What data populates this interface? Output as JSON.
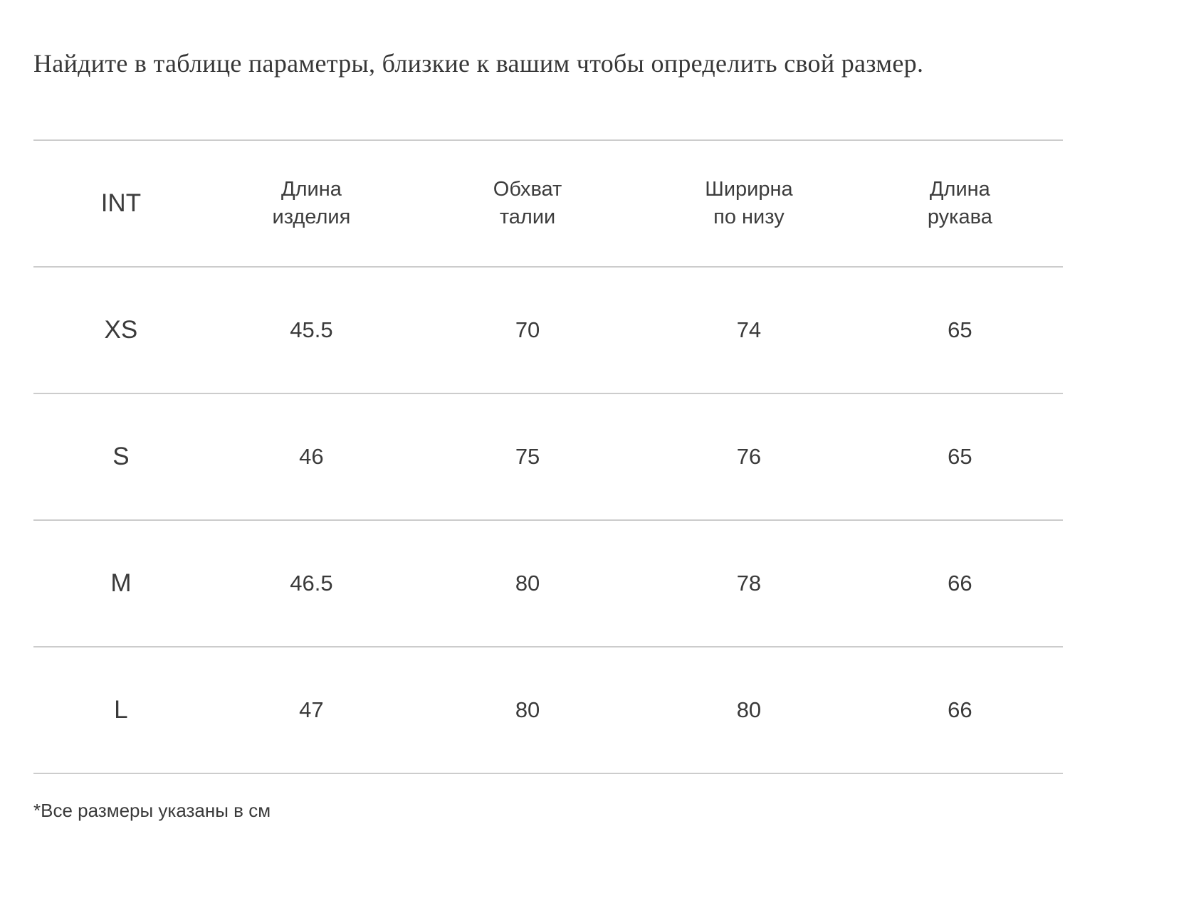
{
  "title": "Найдите в таблице параметры, близкие к вашим чтобы определить свой размер.",
  "table": {
    "columns": [
      "INT",
      "Длина\nизделия",
      "Обхват\nталии",
      "Ширирна\nпо низу",
      "Длина\nрукава"
    ],
    "rows": [
      {
        "size": "XS",
        "values": [
          "45.5",
          "70",
          "74",
          "65"
        ]
      },
      {
        "size": "S",
        "values": [
          "46",
          "75",
          "76",
          "65"
        ]
      },
      {
        "size": "M",
        "values": [
          "46.5",
          "80",
          "78",
          "66"
        ]
      },
      {
        "size": "L",
        "values": [
          "47",
          "80",
          "80",
          "66"
        ]
      }
    ]
  },
  "footnote": "*Все размеры указаны в см"
}
